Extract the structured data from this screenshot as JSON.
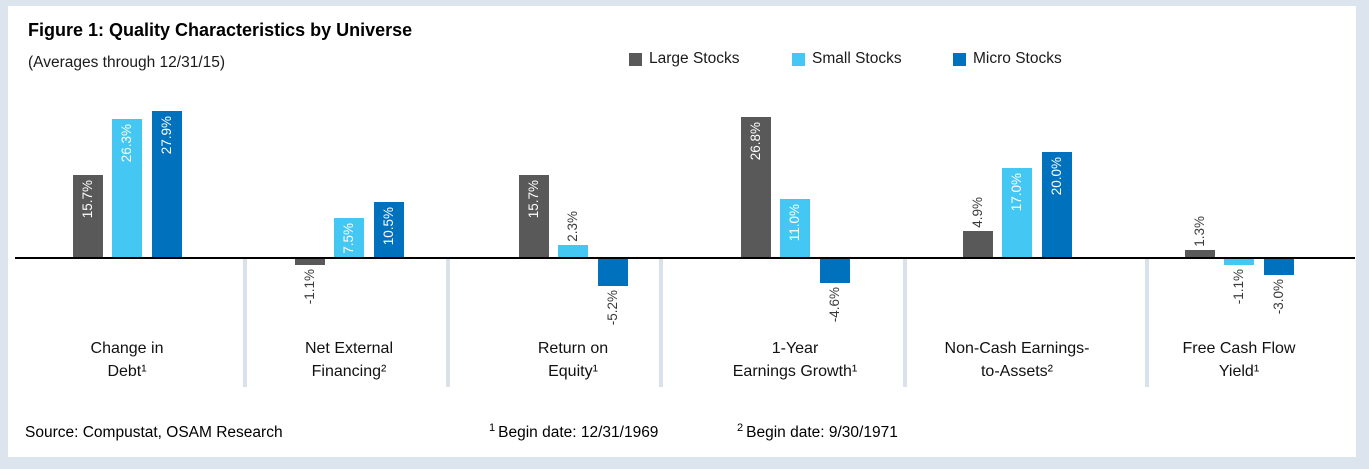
{
  "figure": {
    "title": "Figure 1: Quality Characteristics by Universe",
    "subtitle": "(Averages through 12/31/15)"
  },
  "chart_data": {
    "type": "bar",
    "title": "Figure 1: Quality Characteristics by Universe",
    "subtitle": "(Averages through 12/31/15)",
    "value_unit": "%",
    "baseline": 0,
    "ylim": [
      -6,
      29
    ],
    "gridlines": false,
    "legend_position": "top",
    "categories": [
      "Change in\nDebt¹",
      "Net External\nFinancing²",
      "Return on\nEquity¹",
      "1-Year\nEarnings Growth¹",
      "Non-Cash Earnings-\nto-Assets²",
      "Free Cash Flow\nYield¹"
    ],
    "series": [
      {
        "name": "Large Stocks",
        "color": "#595959",
        "values": [
          15.7,
          -1.1,
          15.7,
          26.8,
          4.9,
          1.3
        ]
      },
      {
        "name": "Small Stocks",
        "color": "#45C7F3",
        "values": [
          26.3,
          7.5,
          2.3,
          11.0,
          17.0,
          -1.1
        ]
      },
      {
        "name": "Micro Stocks",
        "color": "#0071BC",
        "values": [
          27.9,
          10.5,
          -5.2,
          -4.6,
          20.0,
          -3.0
        ]
      }
    ],
    "bar_labels": [
      [
        "15.7%",
        "-1.1%",
        "15.7%",
        "26.8%",
        "4.9%",
        "1.3%"
      ],
      [
        "26.3%",
        "7.5%",
        "2.3%",
        "11.0%",
        "17.0%",
        "-1.1%"
      ],
      [
        "27.9%",
        "10.5%",
        "-5.2%",
        "-4.6%",
        "20.0%",
        "-3.0%"
      ]
    ],
    "label_colors": {
      "inside_bar": "#FFFFFF",
      "outside_bar": "#3B3B3B"
    }
  },
  "footer": {
    "source": "Source: Compustat, OSAM Research",
    "notes": [
      {
        "sup": "1",
        "text": "Begin date: 12/31/1969"
      },
      {
        "sup": "2",
        "text": "Begin date: 9/30/1971"
      }
    ]
  },
  "colors": {
    "frame": "#DCE5ED",
    "divider": "#D9E2EA",
    "axis": "#000000",
    "background": "#FFFFFF"
  }
}
